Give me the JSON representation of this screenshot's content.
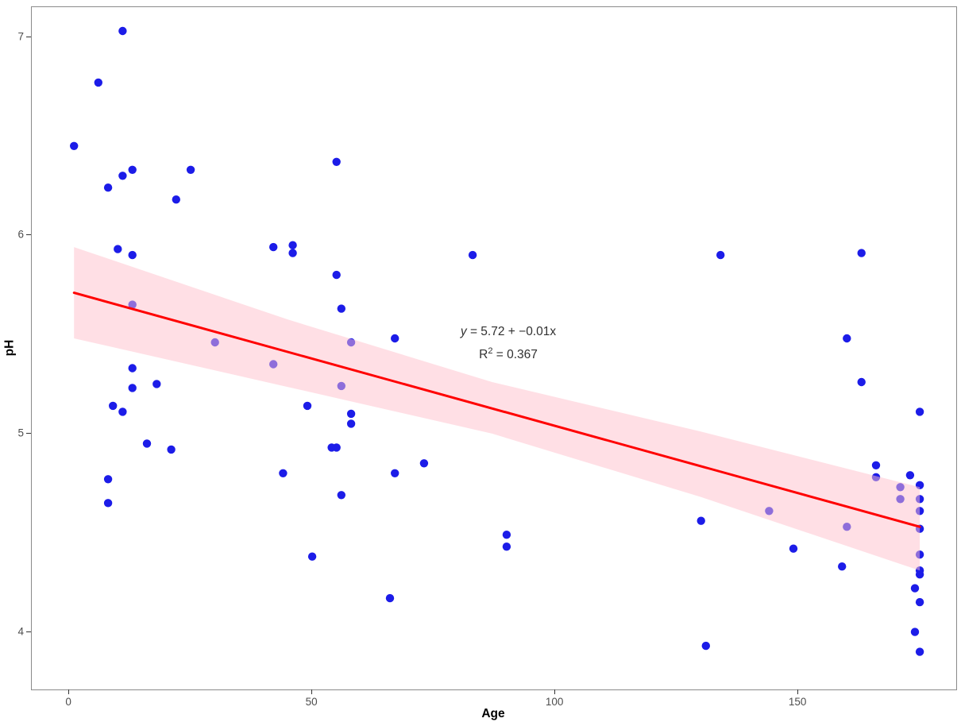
{
  "chart_data": {
    "type": "scatter",
    "title": "",
    "xlabel": "Age",
    "ylabel": "pH",
    "x_ticks": [
      0,
      50,
      100,
      150
    ],
    "y_ticks": [
      4,
      5,
      6,
      7
    ],
    "xlim": [
      -7.7,
      182.5
    ],
    "ylim": [
      3.71,
      7.15
    ],
    "grid": false,
    "legend": "none",
    "annotation": {
      "equation_var": "y",
      "equation_rest": " = 5.72 + −0.01x",
      "r2_base": "R",
      "r2_sup": "2",
      "r2_rest": " = 0.367",
      "position": {
        "x": 90.5,
        "y": 5.45
      }
    },
    "regression": {
      "x0": 1,
      "y0": 5.71,
      "x1": 175,
      "y1": 4.53,
      "slope": -0.0068,
      "intercept": 5.72,
      "r_squared": 0.367
    },
    "band": {
      "top": [
        [
          1,
          5.94
        ],
        [
          45,
          5.575
        ],
        [
          87,
          5.26
        ],
        [
          130,
          5.01
        ],
        [
          175,
          4.73
        ]
      ],
      "bottom": [
        [
          1,
          5.48
        ],
        [
          45,
          5.235
        ],
        [
          87,
          5.0
        ],
        [
          130,
          4.68
        ],
        [
          175,
          4.31
        ]
      ]
    },
    "points": [
      [
        11,
        7.03
      ],
      [
        6,
        6.77
      ],
      [
        1,
        6.45
      ],
      [
        8,
        6.24
      ],
      [
        11,
        6.3
      ],
      [
        13,
        6.33
      ],
      [
        25,
        6.33
      ],
      [
        22,
        6.18
      ],
      [
        10,
        5.93
      ],
      [
        13,
        5.9
      ],
      [
        13,
        5.65
      ],
      [
        30,
        5.46
      ],
      [
        13,
        5.33
      ],
      [
        13,
        5.23
      ],
      [
        18,
        5.25
      ],
      [
        9,
        5.14
      ],
      [
        11,
        5.11
      ],
      [
        16,
        4.95
      ],
      [
        21,
        4.92
      ],
      [
        8,
        4.77
      ],
      [
        8,
        4.65
      ],
      [
        55,
        6.37
      ],
      [
        42,
        5.94
      ],
      [
        46,
        5.95
      ],
      [
        46,
        5.91
      ],
      [
        55,
        5.8
      ],
      [
        56,
        5.63
      ],
      [
        58,
        5.46
      ],
      [
        67,
        5.48
      ],
      [
        42,
        5.35
      ],
      [
        56,
        5.24
      ],
      [
        49,
        5.14
      ],
      [
        58,
        5.1
      ],
      [
        58,
        5.05
      ],
      [
        54,
        4.93
      ],
      [
        55,
        4.93
      ],
      [
        44,
        4.8
      ],
      [
        67,
        4.8
      ],
      [
        56,
        4.69
      ],
      [
        50,
        4.38
      ],
      [
        66,
        4.17
      ],
      [
        73,
        4.85
      ],
      [
        83,
        5.9
      ],
      [
        90,
        4.49
      ],
      [
        90,
        4.43
      ],
      [
        134,
        5.9
      ],
      [
        130,
        4.56
      ],
      [
        144,
        4.61
      ],
      [
        149,
        4.42
      ],
      [
        131,
        3.93
      ],
      [
        163,
        5.91
      ],
      [
        160,
        5.48
      ],
      [
        163,
        5.26
      ],
      [
        175,
        5.11
      ],
      [
        166,
        4.84
      ],
      [
        166,
        4.78
      ],
      [
        173,
        4.79
      ],
      [
        171,
        4.73
      ],
      [
        175,
        4.74
      ],
      [
        171,
        4.67
      ],
      [
        175,
        4.67
      ],
      [
        175,
        4.61
      ],
      [
        175,
        4.52
      ],
      [
        175,
        4.39
      ],
      [
        159,
        4.33
      ],
      [
        160,
        4.53
      ],
      [
        175,
        4.31
      ],
      [
        175,
        4.29
      ],
      [
        174,
        4.22
      ],
      [
        175,
        4.15
      ],
      [
        174,
        4.0
      ],
      [
        175,
        3.9
      ]
    ]
  },
  "colors": {
    "point": "#1c1ce8",
    "regression_line": "#ff0000",
    "band_fill": "#ffc0cb",
    "band_opacity": 0.5,
    "panel_border": "#8a8a8a",
    "tick_text": "#4d4d4d",
    "axis_title": "#000000",
    "annotation_text": "#303030"
  }
}
